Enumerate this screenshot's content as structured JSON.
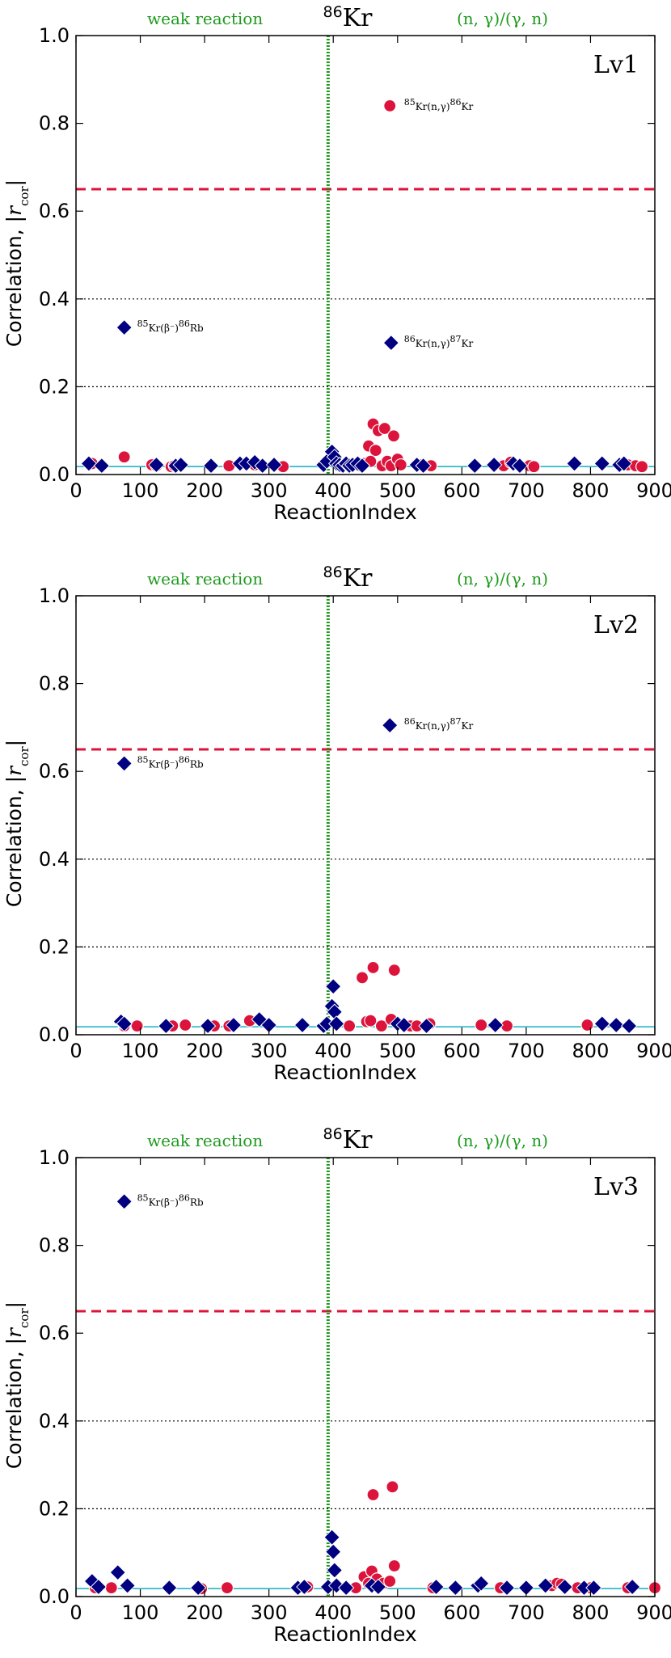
{
  "chart_data": [
    {
      "type": "scatter",
      "title": "86Kr",
      "title_mass": "86",
      "title_element": "Kr",
      "panel_label": "Lv1",
      "xlabel": "ReactionIndex",
      "ylabel": "Correlation, |r_cor|",
      "ylabel_main": "Correlation, |",
      "ylabel_r": "r",
      "ylabel_sub": "cor",
      "ylabel_end": "|",
      "xlim": [
        0,
        900
      ],
      "ylim": [
        0.0,
        1.0
      ],
      "xticks": [
        "0",
        "100",
        "200",
        "300",
        "400",
        "500",
        "600",
        "700",
        "800",
        "900"
      ],
      "yticks": [
        "0.0",
        "0.2",
        "0.4",
        "0.6",
        "0.8",
        "1.0"
      ],
      "weak_label": "weak reaction",
      "ng_label": "(n, γ)/(γ, n)",
      "weak_boundary_x": 392,
      "threshold": 0.65,
      "baseline": 0.018,
      "dotted_grid": [
        0.2,
        0.4
      ],
      "series": [
        {
          "name": "circles",
          "color": "#dc143c",
          "marker": "circle",
          "x": [
            25,
            75,
            118,
            125,
            148,
            153,
            238,
            278,
            322,
            440,
            448,
            455,
            458,
            462,
            466,
            470,
            476,
            480,
            484,
            490,
            494,
            500,
            505,
            538,
            552,
            665,
            676,
            705,
            712,
            858,
            870,
            880,
            488
          ],
          "y": [
            0.025,
            0.04,
            0.022,
            0.02,
            0.018,
            0.02,
            0.02,
            0.022,
            0.018,
            0.02,
            0.025,
            0.065,
            0.03,
            0.115,
            0.055,
            0.1,
            0.02,
            0.105,
            0.03,
            0.02,
            0.088,
            0.035,
            0.022,
            0.022,
            0.02,
            0.02,
            0.028,
            0.02,
            0.018,
            0.022,
            0.02,
            0.018,
            0.84
          ]
        },
        {
          "name": "diamonds",
          "color": "#000080",
          "marker": "diamond",
          "x": [
            20,
            40,
            125,
            155,
            163,
            210,
            255,
            265,
            278,
            290,
            308,
            385,
            390,
            398,
            402,
            405,
            410,
            415,
            420,
            425,
            430,
            438,
            445,
            530,
            540,
            620,
            650,
            680,
            690,
            775,
            818,
            845,
            852,
            75,
            490
          ],
          "y": [
            0.025,
            0.02,
            0.022,
            0.02,
            0.022,
            0.02,
            0.025,
            0.025,
            0.028,
            0.02,
            0.022,
            0.022,
            0.03,
            0.052,
            0.04,
            0.025,
            0.022,
            0.02,
            0.025,
            0.02,
            0.022,
            0.025,
            0.02,
            0.022,
            0.02,
            0.02,
            0.022,
            0.025,
            0.02,
            0.025,
            0.025,
            0.022,
            0.025,
            0.335,
            0.3
          ]
        }
      ],
      "annotations": [
        {
          "x": 510,
          "y": 0.84,
          "mass_a": "85",
          "reaction": "Kr(n,γ)",
          "mass_b": "86",
          "product": "Kr"
        },
        {
          "x": 95,
          "y": 0.335,
          "mass_a": "85",
          "reaction": "Kr(β⁻)",
          "mass_b": "86",
          "product": "Rb"
        },
        {
          "x": 510,
          "y": 0.3,
          "mass_a": "86",
          "reaction": "Kr(n,γ)",
          "mass_b": "87",
          "product": "Kr"
        }
      ]
    },
    {
      "type": "scatter",
      "title": "86Kr",
      "title_mass": "86",
      "title_element": "Kr",
      "panel_label": "Lv2",
      "xlabel": "ReactionIndex",
      "ylabel": "Correlation, |r_cor|",
      "ylabel_main": "Correlation, |",
      "ylabel_r": "r",
      "ylabel_sub": "cor",
      "ylabel_end": "|",
      "xlim": [
        0,
        900
      ],
      "ylim": [
        0.0,
        1.0
      ],
      "xticks": [
        "0",
        "100",
        "200",
        "300",
        "400",
        "500",
        "600",
        "700",
        "800",
        "900"
      ],
      "yticks": [
        "0.0",
        "0.2",
        "0.4",
        "0.6",
        "0.8",
        "1.0"
      ],
      "weak_label": "weak reaction",
      "ng_label": "(n, γ)/(γ, n)",
      "weak_boundary_x": 392,
      "threshold": 0.65,
      "baseline": 0.018,
      "dotted_grid": [
        0.2,
        0.4
      ],
      "series": [
        {
          "name": "circles",
          "color": "#dc143c",
          "marker": "circle",
          "x": [
            75,
            95,
            150,
            170,
            215,
            238,
            270,
            425,
            445,
            452,
            458,
            462,
            475,
            490,
            495,
            520,
            530,
            550,
            630,
            670,
            795
          ],
          "y": [
            0.02,
            0.02,
            0.02,
            0.022,
            0.02,
            0.02,
            0.032,
            0.02,
            0.13,
            0.03,
            0.032,
            0.153,
            0.02,
            0.035,
            0.147,
            0.02,
            0.02,
            0.025,
            0.022,
            0.02,
            0.022
          ]
        },
        {
          "name": "diamonds",
          "color": "#000080",
          "marker": "diamond",
          "x": [
            70,
            75,
            140,
            205,
            245,
            285,
            300,
            352,
            385,
            390,
            398,
            400,
            402,
            405,
            500,
            510,
            545,
            652,
            818,
            840,
            860,
            488
          ],
          "y": [
            0.03,
            0.025,
            0.02,
            0.02,
            0.022,
            0.035,
            0.022,
            0.022,
            0.02,
            0.025,
            0.065,
            0.11,
            0.052,
            0.025,
            0.025,
            0.022,
            0.02,
            0.022,
            0.025,
            0.022,
            0.02,
            0.705
          ]
        },
        {
          "name": "diamond-outlier",
          "color": "#000080",
          "marker": "diamond",
          "x": [
            75
          ],
          "y": [
            0.618
          ]
        }
      ],
      "annotations": [
        {
          "x": 510,
          "y": 0.705,
          "mass_a": "86",
          "reaction": "Kr(n,γ)",
          "mass_b": "87",
          "product": "Kr"
        },
        {
          "x": 95,
          "y": 0.618,
          "mass_a": "85",
          "reaction": "Kr(β⁻)",
          "mass_b": "86",
          "product": "Rb"
        }
      ]
    },
    {
      "type": "scatter",
      "title": "86Kr",
      "title_mass": "86",
      "title_element": "Kr",
      "panel_label": "Lv3",
      "xlabel": "ReactionIndex",
      "ylabel": "Correlation, |r_cor|",
      "ylabel_main": "Correlation, |",
      "ylabel_r": "r",
      "ylabel_sub": "cor",
      "ylabel_end": "|",
      "xlim": [
        0,
        900
      ],
      "ylim": [
        0.0,
        1.0
      ],
      "xticks": [
        "0",
        "100",
        "200",
        "300",
        "400",
        "500",
        "600",
        "700",
        "800",
        "900"
      ],
      "yticks": [
        "0.0",
        "0.2",
        "0.4",
        "0.6",
        "0.8",
        "1.0"
      ],
      "weak_label": "weak reaction",
      "ng_label": "(n, γ)/(γ, n)",
      "weak_boundary_x": 392,
      "threshold": 0.65,
      "baseline": 0.018,
      "dotted_grid": [
        0.2,
        0.4
      ],
      "series": [
        {
          "name": "circles",
          "color": "#dc143c",
          "marker": "circle",
          "x": [
            30,
            55,
            195,
            235,
            360,
            435,
            448,
            455,
            460,
            462,
            468,
            478,
            488,
            492,
            495,
            555,
            660,
            740,
            748,
            755,
            780,
            800,
            858,
            900
          ],
          "y": [
            0.02,
            0.02,
            0.018,
            0.02,
            0.022,
            0.02,
            0.045,
            0.03,
            0.058,
            0.232,
            0.04,
            0.03,
            0.035,
            0.25,
            0.07,
            0.02,
            0.02,
            0.025,
            0.03,
            0.028,
            0.02,
            0.02,
            0.02,
            0.02
          ]
        },
        {
          "name": "diamonds",
          "color": "#000080",
          "marker": "diamond",
          "x": [
            25,
            35,
            65,
            80,
            145,
            190,
            345,
            355,
            392,
            398,
            400,
            402,
            405,
            420,
            460,
            470,
            560,
            590,
            625,
            630,
            670,
            700,
            730,
            760,
            790,
            805,
            865,
            75
          ],
          "y": [
            0.035,
            0.022,
            0.055,
            0.025,
            0.02,
            0.02,
            0.02,
            0.022,
            0.022,
            0.135,
            0.102,
            0.06,
            0.025,
            0.02,
            0.025,
            0.022,
            0.022,
            0.02,
            0.025,
            0.03,
            0.02,
            0.02,
            0.025,
            0.022,
            0.02,
            0.02,
            0.022,
            0.9
          ]
        }
      ],
      "annotations": [
        {
          "x": 95,
          "y": 0.9,
          "mass_a": "85",
          "reaction": "Kr(β⁻)",
          "mass_b": "86",
          "product": "Rb"
        }
      ]
    }
  ]
}
